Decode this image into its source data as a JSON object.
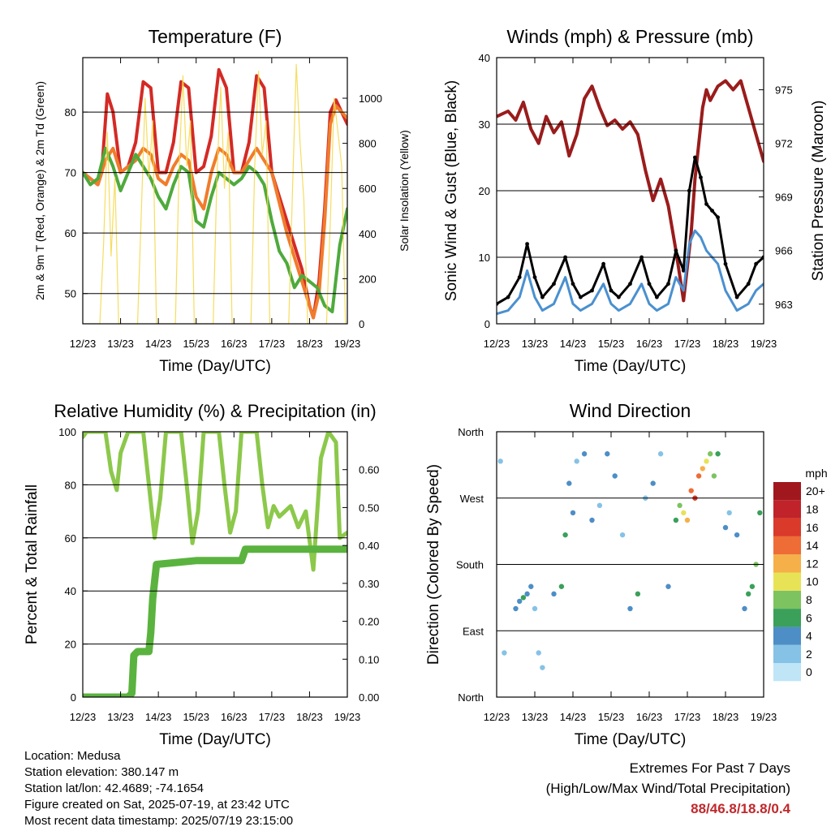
{
  "chart_data": [
    {
      "type": "line",
      "title": "Temperature (F)",
      "xlabel": "Time (Day/UTC)",
      "ylabel": "2m & 9m T (Red, Orange) & 2m Td (Green)",
      "y2label": "Solar Insolation (Yellow)",
      "x_ticks": [
        "12/23",
        "13/23",
        "14/23",
        "15/23",
        "16/23",
        "17/23",
        "18/23",
        "19/23"
      ],
      "xlim": [
        0,
        7
      ],
      "ylim": [
        45,
        89
      ],
      "yticks": [
        50,
        60,
        70,
        80
      ],
      "y2lim": [
        0,
        1180
      ],
      "y2ticks": [
        0,
        200,
        400,
        600,
        800,
        1000
      ],
      "series": [
        {
          "name": "2m T",
          "color": "#d42a25",
          "x": [
            0,
            0.2,
            0.4,
            0.5,
            0.65,
            0.8,
            1.0,
            1.2,
            1.4,
            1.6,
            1.8,
            2.0,
            2.2,
            2.4,
            2.6,
            2.8,
            3.0,
            3.2,
            3.4,
            3.6,
            3.8,
            4.0,
            4.2,
            4.4,
            4.6,
            4.8,
            5.0,
            5.2,
            5.4,
            5.6,
            5.8,
            6.0,
            6.1,
            6.25,
            6.4,
            6.55,
            6.7,
            6.85,
            7.0
          ],
          "values": [
            70,
            69,
            68,
            70,
            83,
            80,
            70,
            71,
            75,
            85,
            84,
            70,
            70,
            75,
            85,
            84,
            70,
            71,
            76,
            87,
            84,
            70,
            70,
            75,
            86,
            84,
            70,
            66,
            62,
            58,
            54,
            48,
            46,
            52,
            64,
            80,
            82,
            80,
            78
          ]
        },
        {
          "name": "9m T",
          "color": "#f07c2c",
          "x": [
            0,
            0.2,
            0.4,
            0.6,
            0.8,
            1.0,
            1.2,
            1.4,
            1.6,
            1.8,
            2.0,
            2.2,
            2.4,
            2.6,
            2.8,
            3.0,
            3.2,
            3.4,
            3.6,
            3.8,
            4.0,
            4.2,
            4.4,
            4.6,
            4.8,
            5.0,
            5.2,
            5.4,
            5.6,
            5.8,
            6.0,
            6.1,
            6.25,
            6.4,
            6.55,
            6.7,
            6.85,
            7.0
          ],
          "values": [
            70,
            69,
            68,
            72,
            74,
            70,
            71,
            72,
            74,
            73,
            69,
            68,
            71,
            73,
            72,
            66,
            64,
            70,
            74,
            73,
            70,
            70,
            72,
            74,
            72,
            70,
            65,
            60,
            56,
            52,
            48,
            46,
            50,
            62,
            78,
            81,
            80,
            79
          ]
        },
        {
          "name": "2m Td",
          "color": "#4eaa3c",
          "x": [
            0,
            0.2,
            0.4,
            0.6,
            0.8,
            1.0,
            1.2,
            1.4,
            1.6,
            1.8,
            2.0,
            2.2,
            2.4,
            2.6,
            2.8,
            3.0,
            3.2,
            3.4,
            3.6,
            3.8,
            4.0,
            4.2,
            4.4,
            4.6,
            4.8,
            5.0,
            5.2,
            5.4,
            5.6,
            5.8,
            6.0,
            6.2,
            6.4,
            6.6,
            6.8,
            7.0
          ],
          "values": [
            70,
            68,
            69,
            74,
            71,
            67,
            70,
            73,
            71,
            69,
            66,
            64,
            68,
            71,
            70,
            62,
            61,
            66,
            70,
            69,
            68,
            69,
            71,
            70,
            68,
            62,
            57,
            55,
            51,
            53,
            52,
            51,
            48,
            47,
            58,
            64
          ]
        },
        {
          "name": "Solar Insolation",
          "color": "#f5d94e",
          "axis": "y2",
          "x": [
            0,
            0.45,
            0.55,
            0.65,
            0.75,
            0.85,
            0.95,
            1.45,
            1.55,
            1.65,
            1.75,
            1.85,
            1.95,
            2.45,
            2.55,
            2.65,
            2.75,
            2.85,
            2.95,
            3.45,
            3.55,
            3.65,
            3.75,
            3.85,
            3.95,
            4.45,
            4.55,
            4.65,
            4.75,
            4.85,
            4.95,
            5.45,
            5.55,
            5.65,
            5.75,
            5.85,
            5.95,
            6.45,
            6.55,
            6.65,
            6.75,
            6.85,
            6.95
          ],
          "values": [
            0,
            0,
            350,
            850,
            300,
            650,
            0,
            0,
            500,
            1000,
            650,
            900,
            0,
            0,
            700,
            1100,
            700,
            900,
            0,
            0,
            650,
            1050,
            600,
            850,
            0,
            0,
            700,
            1120,
            750,
            900,
            0,
            0,
            600,
            1150,
            800,
            550,
            0,
            0,
            450,
            1000,
            850,
            700,
            0
          ]
        }
      ]
    },
    {
      "type": "line",
      "title": "Winds (mph) & Pressure (mb)",
      "xlabel": "Time (Day/UTC)",
      "ylabel": "Sonic Wind & Gust (Blue, Black)",
      "y2label": "Station Pressure (Maroon)",
      "x_ticks": [
        "12/23",
        "13/23",
        "14/23",
        "15/23",
        "16/23",
        "17/23",
        "18/23",
        "19/23"
      ],
      "xlim": [
        0,
        7
      ],
      "ylim": [
        0,
        40
      ],
      "yticks": [
        0,
        10,
        20,
        30,
        40
      ],
      "y2lim": [
        961.9,
        976.8
      ],
      "y2ticks": [
        963,
        966,
        969,
        972,
        975
      ],
      "series": [
        {
          "name": "Station Pressure",
          "color": "#9a1c1c",
          "axis": "y2",
          "x": [
            0,
            0.3,
            0.5,
            0.7,
            0.9,
            1.1,
            1.3,
            1.5,
            1.7,
            1.9,
            2.1,
            2.3,
            2.5,
            2.7,
            2.9,
            3.1,
            3.3,
            3.5,
            3.7,
            3.9,
            4.1,
            4.3,
            4.5,
            4.7,
            4.9,
            5.1,
            5.2,
            5.4,
            5.5,
            5.6,
            5.8,
            6.0,
            6.2,
            6.4,
            6.6,
            6.8,
            7.0
          ],
          "values": [
            973.5,
            973.8,
            973.3,
            974.3,
            972.8,
            972.0,
            973.5,
            972.6,
            973.2,
            971.3,
            972.5,
            974.5,
            975.2,
            974.0,
            973.0,
            973.3,
            972.8,
            973.2,
            972.5,
            970.5,
            968.8,
            970.0,
            968.5,
            966.0,
            963.2,
            967.0,
            970.0,
            974.0,
            975.0,
            974.4,
            975.2,
            975.5,
            975.0,
            975.5,
            974.0,
            972.5,
            971.0
          ]
        },
        {
          "name": "Gust",
          "color": "#000000",
          "x": [
            0,
            0.3,
            0.6,
            0.8,
            1.0,
            1.2,
            1.5,
            1.8,
            2.0,
            2.2,
            2.5,
            2.8,
            3.0,
            3.2,
            3.5,
            3.8,
            4.0,
            4.2,
            4.5,
            4.7,
            4.9,
            5.05,
            5.2,
            5.35,
            5.5,
            5.65,
            5.8,
            6.0,
            6.3,
            6.6,
            6.8,
            7.0
          ],
          "values": [
            3,
            4,
            7,
            12,
            7,
            4,
            6,
            10,
            6,
            4,
            5,
            9,
            5,
            4,
            6,
            10,
            6,
            4,
            6,
            11,
            8,
            20,
            25,
            22,
            18,
            17,
            16,
            9,
            4,
            6,
            9,
            10
          ]
        },
        {
          "name": "Sonic Wind",
          "color": "#4a90d0",
          "x": [
            0,
            0.3,
            0.6,
            0.8,
            1.0,
            1.2,
            1.5,
            1.8,
            2.0,
            2.2,
            2.5,
            2.8,
            3.0,
            3.2,
            3.5,
            3.8,
            4.0,
            4.2,
            4.5,
            4.7,
            4.9,
            5.05,
            5.2,
            5.35,
            5.5,
            5.65,
            5.8,
            6.0,
            6.3,
            6.6,
            6.8,
            7.0
          ],
          "values": [
            1.5,
            2,
            4,
            8,
            4,
            2,
            3,
            7,
            3,
            2,
            3,
            6,
            3,
            2,
            3,
            6,
            3,
            2,
            3,
            7,
            5,
            12,
            14,
            13,
            11,
            10,
            9,
            5,
            2,
            3,
            5,
            6
          ]
        }
      ]
    },
    {
      "type": "line",
      "title": "Relative Humidity (%) & Precipitation (in)",
      "xlabel": "Time (Day/UTC)",
      "ylabel": "Percent & Total Rainfall",
      "x_ticks": [
        "12/23",
        "13/23",
        "14/23",
        "15/23",
        "16/23",
        "17/23",
        "18/23",
        "19/23"
      ],
      "xlim": [
        0,
        7
      ],
      "ylim": [
        0,
        100
      ],
      "yticks": [
        0,
        20,
        40,
        60,
        80,
        100
      ],
      "y2lim": [
        0,
        0.7
      ],
      "y2ticks": [
        "0.00",
        "0.10",
        "0.20",
        "0.30",
        "0.40",
        "0.50",
        "0.60"
      ],
      "series": [
        {
          "name": "Relative Humidity",
          "color": "#8cc84b",
          "x": [
            0,
            0.1,
            0.6,
            0.75,
            0.9,
            1.0,
            1.2,
            1.6,
            1.75,
            1.9,
            2.05,
            2.2,
            2.6,
            2.75,
            2.9,
            3.05,
            3.2,
            3.6,
            3.75,
            3.9,
            4.05,
            4.2,
            4.6,
            4.75,
            4.9,
            5.05,
            5.2,
            5.5,
            5.7,
            5.9,
            6.1,
            6.3,
            6.5,
            6.7,
            6.8,
            7.0
          ],
          "values": [
            98,
            100,
            100,
            85,
            78,
            92,
            100,
            100,
            80,
            60,
            75,
            100,
            100,
            80,
            58,
            70,
            100,
            100,
            80,
            62,
            70,
            100,
            100,
            80,
            64,
            72,
            68,
            72,
            64,
            70,
            48,
            90,
            100,
            96,
            60,
            62
          ]
        },
        {
          "name": "Total Precipitation",
          "color": "#5ab33e",
          "axis": "y2",
          "x": [
            0,
            1.2,
            1.3,
            1.35,
            1.45,
            1.6,
            1.75,
            1.8,
            1.85,
            1.95,
            3.0,
            4.2,
            4.3,
            5.0,
            6.0,
            7.0
          ],
          "values": [
            0,
            0,
            0.01,
            0.11,
            0.12,
            0.12,
            0.12,
            0.17,
            0.26,
            0.35,
            0.36,
            0.36,
            0.39,
            0.39,
            0.39,
            0.39
          ]
        }
      ]
    },
    {
      "type": "scatter",
      "title": "Wind Direction",
      "xlabel": "Time (Day/UTC)",
      "ylabel": "Direction (Colored By Speed)",
      "x_ticks": [
        "12/23",
        "13/23",
        "14/23",
        "15/23",
        "16/23",
        "17/23",
        "18/23",
        "19/23"
      ],
      "xlim": [
        0,
        7
      ],
      "ylim": [
        0,
        360
      ],
      "yticks": [
        "North",
        "East",
        "South",
        "West",
        "North"
      ],
      "colorbar": {
        "title": "mph",
        "labels": [
          "0",
          "2",
          "4",
          "6",
          "8",
          "10",
          "12",
          "14",
          "16",
          "18",
          "20+"
        ],
        "colors": [
          "#bfe5f6",
          "#86c2e6",
          "#4d8ec6",
          "#3aa05a",
          "#7dc35f",
          "#e8e256",
          "#f5b049",
          "#ee6c35",
          "#da3a2a",
          "#c0232a",
          "#a0181e"
        ]
      },
      "series": [
        {
          "name": "Wind Direction",
          "x": [
            0.1,
            0.2,
            0.5,
            0.6,
            0.7,
            0.8,
            0.9,
            1.0,
            1.1,
            1.2,
            1.5,
            1.7,
            1.8,
            1.9,
            2.0,
            2.1,
            2.3,
            2.5,
            2.7,
            2.9,
            3.1,
            3.3,
            3.5,
            3.7,
            3.9,
            4.1,
            4.3,
            4.5,
            4.7,
            4.8,
            4.9,
            5.0,
            5.1,
            5.2,
            5.3,
            5.4,
            5.5,
            5.6,
            5.7,
            5.8,
            6.0,
            6.1,
            6.3,
            6.5,
            6.6,
            6.7,
            6.8,
            6.9
          ],
          "values": [
            320,
            60,
            120,
            130,
            135,
            140,
            150,
            120,
            60,
            40,
            140,
            150,
            220,
            290,
            250,
            320,
            330,
            240,
            260,
            330,
            300,
            220,
            120,
            140,
            270,
            290,
            330,
            150,
            240,
            260,
            250,
            240,
            280,
            270,
            300,
            310,
            320,
            330,
            300,
            330,
            230,
            250,
            220,
            120,
            140,
            150,
            180,
            250
          ],
          "speeds": [
            1,
            1,
            3,
            4,
            5,
            4,
            3,
            2,
            1,
            1,
            4,
            5,
            6,
            3,
            4,
            2,
            3,
            4,
            2,
            3,
            4,
            2,
            4,
            5,
            2,
            3,
            2,
            4,
            6,
            8,
            10,
            12,
            14,
            16,
            13,
            12,
            10,
            8,
            7,
            6,
            3,
            2,
            3,
            4,
            5,
            6,
            7,
            5
          ]
        }
      ]
    }
  ],
  "footer": {
    "location": "Location: Medusa",
    "elevation": "Station elevation: 380.147 m",
    "latlon": "Station lat/lon: 42.4689; -74.1654",
    "created": "Figure created on Sat, 2025-07-19, at 23:42 UTC",
    "recent": "Most recent data timestamp: 2025/07/19 23:15:00",
    "extremes_title": "Extremes For Past 7 Days",
    "extremes_sub": "(High/Low/Max Wind/Total Precipitation)",
    "extremes_value": "88/46.8/18.8/0.4"
  }
}
